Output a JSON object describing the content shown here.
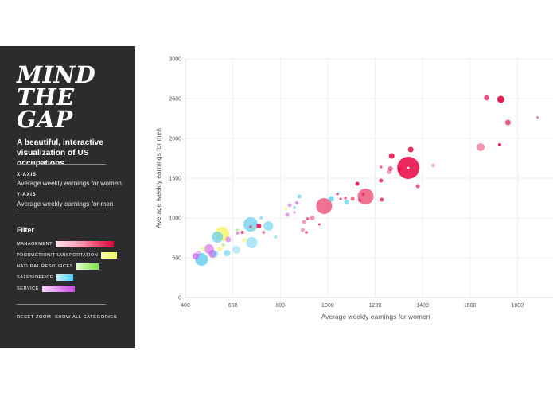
{
  "sidebar": {
    "logo_lines": [
      "MIND",
      "THE",
      "GAP"
    ],
    "tagline": "A beautiful, interactive visualization of US occupations.",
    "x_axis_title": "X-AXIS",
    "x_axis_value": "Average weekly earnings for women",
    "y_axis_title": "Y-AXIS",
    "y_axis_value": "Average weekly earnings for men",
    "filter_title": "Filter",
    "filters": [
      {
        "label": "MANAGEMENT",
        "colors": [
          "#fde4ea",
          "#fbc9d4",
          "#f9a9bb",
          "#f5859f",
          "#f06383",
          "#ea4169",
          "#e2204f",
          "#d8063b"
        ]
      },
      {
        "label": "PRODUCTION/TRANSPORTATION",
        "colors": [
          "#fafc9e",
          "#f6f76c"
        ]
      },
      {
        "label": "NATURAL RESOURCES",
        "colors": [
          "#e3fbd6",
          "#c3f5a6",
          "#9cec71",
          "#7de34a"
        ]
      },
      {
        "label": "SALES/OFFICE",
        "colors": [
          "#c5f1fc",
          "#8ee3f8",
          "#5bd2f2"
        ]
      },
      {
        "label": "SERVICE",
        "colors": [
          "#f6d6fb",
          "#edb4f6",
          "#e08ff0",
          "#d46de9",
          "#c64ce2"
        ]
      }
    ],
    "reset_zoom": "RESET ZOOM",
    "show_all": "SHOW ALL CATEGORIES"
  },
  "colors": {
    "sidebar_bg": "#2c2c2e",
    "management": "#e8124a",
    "production": "#f5f56a",
    "natural": "#8ee65e",
    "sales": "#5ccdf0",
    "service": "#cf5de8"
  },
  "chart_data": {
    "type": "scatter",
    "title": "",
    "xlabel": "Average weekly earnings for women",
    "ylabel": "Average weekly earnings for men",
    "xlim": [
      400,
      1950
    ],
    "ylim": [
      0,
      3000
    ],
    "xticks": [
      400,
      600,
      800,
      1000,
      1200,
      1400,
      1600,
      1800
    ],
    "yticks": [
      0,
      500,
      1000,
      1500,
      2000,
      2500,
      3000
    ],
    "grid": true,
    "points": [
      {
        "x": 1340,
        "y": 1630,
        "r": 14,
        "cat": "management",
        "o": 0.9
      },
      {
        "x": 985,
        "y": 1150,
        "r": 10,
        "cat": "management",
        "o": 0.6
      },
      {
        "x": 1160,
        "y": 1270,
        "r": 10,
        "cat": "management",
        "o": 0.6
      },
      {
        "x": 1350,
        "y": 1860,
        "r": 3.5,
        "cat": "management",
        "o": 0.9
      },
      {
        "x": 1270,
        "y": 1780,
        "r": 3.5,
        "cat": "management",
        "o": 0.9
      },
      {
        "x": 1670,
        "y": 2510,
        "r": 3.2,
        "cat": "management",
        "o": 0.75
      },
      {
        "x": 1730,
        "y": 2490,
        "r": 4.5,
        "cat": "management",
        "o": 0.95
      },
      {
        "x": 1760,
        "y": 2200,
        "r": 3.5,
        "cat": "management",
        "o": 0.7
      },
      {
        "x": 1645,
        "y": 1890,
        "r": 5,
        "cat": "management",
        "o": 0.45
      },
      {
        "x": 1725,
        "y": 1920,
        "r": 2,
        "cat": "management",
        "o": 0.95
      },
      {
        "x": 1885,
        "y": 2265,
        "r": 1.2,
        "cat": "management",
        "o": 0.8
      },
      {
        "x": 1225,
        "y": 1470,
        "r": 2.5,
        "cat": "management",
        "o": 0.8
      },
      {
        "x": 1260,
        "y": 1580,
        "r": 3,
        "cat": "management",
        "o": 0.4
      },
      {
        "x": 1265,
        "y": 1620,
        "r": 3,
        "cat": "management",
        "o": 0.6
      },
      {
        "x": 1305,
        "y": 1610,
        "r": 2.5,
        "cat": "management",
        "o": 0.9
      },
      {
        "x": 1225,
        "y": 1640,
        "r": 1.8,
        "cat": "management",
        "o": 0.6
      },
      {
        "x": 1445,
        "y": 1660,
        "r": 2.5,
        "cat": "management",
        "o": 0.3
      },
      {
        "x": 1228,
        "y": 1230,
        "r": 2.5,
        "cat": "management",
        "o": 0.8
      },
      {
        "x": 1135,
        "y": 1220,
        "r": 2,
        "cat": "management",
        "o": 0.6
      },
      {
        "x": 1150,
        "y": 1300,
        "r": 2,
        "cat": "management",
        "o": 0.6
      },
      {
        "x": 1105,
        "y": 1240,
        "r": 2.5,
        "cat": "management",
        "o": 0.6
      },
      {
        "x": 1075,
        "y": 1250,
        "r": 1.8,
        "cat": "management",
        "o": 0.6
      },
      {
        "x": 1040,
        "y": 1300,
        "r": 1.5,
        "cat": "management",
        "o": 0.8
      },
      {
        "x": 1055,
        "y": 1240,
        "r": 1.5,
        "cat": "management",
        "o": 0.8
      },
      {
        "x": 1125,
        "y": 1430,
        "r": 2.5,
        "cat": "management",
        "o": 0.9
      },
      {
        "x": 1380,
        "y": 1400,
        "r": 2.5,
        "cat": "management",
        "o": 0.7
      },
      {
        "x": 935,
        "y": 1000,
        "r": 3,
        "cat": "management",
        "o": 0.45
      },
      {
        "x": 915,
        "y": 990,
        "r": 2,
        "cat": "management",
        "o": 0.6
      },
      {
        "x": 895,
        "y": 850,
        "r": 2.5,
        "cat": "management",
        "o": 0.4
      },
      {
        "x": 900,
        "y": 950,
        "r": 2.5,
        "cat": "management",
        "o": 0.4
      },
      {
        "x": 965,
        "y": 920,
        "r": 1.5,
        "cat": "management",
        "o": 0.8
      },
      {
        "x": 910,
        "y": 820,
        "r": 1.8,
        "cat": "management",
        "o": 0.7
      },
      {
        "x": 640,
        "y": 820,
        "r": 2,
        "cat": "management",
        "o": 0.7
      },
      {
        "x": 710,
        "y": 900,
        "r": 3,
        "cat": "management",
        "o": 0.9
      },
      {
        "x": 675,
        "y": 890,
        "r": 2,
        "cat": "management",
        "o": 0.5
      },
      {
        "x": 730,
        "y": 820,
        "r": 2,
        "cat": "management",
        "o": 0.5
      },
      {
        "x": 675,
        "y": 920,
        "r": 9,
        "cat": "sales",
        "o": 0.7
      },
      {
        "x": 535,
        "y": 760,
        "r": 7,
        "cat": "sales",
        "o": 0.7
      },
      {
        "x": 468,
        "y": 480,
        "r": 8,
        "cat": "sales",
        "o": 0.8
      },
      {
        "x": 680,
        "y": 690,
        "r": 7,
        "cat": "sales",
        "o": 0.5
      },
      {
        "x": 750,
        "y": 900,
        "r": 6,
        "cat": "sales",
        "o": 0.6
      },
      {
        "x": 1015,
        "y": 1240,
        "r": 3.5,
        "cat": "sales",
        "o": 0.8
      },
      {
        "x": 1080,
        "y": 1200,
        "r": 3,
        "cat": "sales",
        "o": 0.7
      },
      {
        "x": 1045,
        "y": 1310,
        "r": 2,
        "cat": "sales",
        "o": 0.5
      },
      {
        "x": 880,
        "y": 1270,
        "r": 2.5,
        "cat": "sales",
        "o": 0.7
      },
      {
        "x": 860,
        "y": 1130,
        "r": 2,
        "cat": "sales",
        "o": 0.6
      },
      {
        "x": 575,
        "y": 560,
        "r": 4,
        "cat": "sales",
        "o": 0.6
      },
      {
        "x": 615,
        "y": 600,
        "r": 5,
        "cat": "sales",
        "o": 0.4
      },
      {
        "x": 525,
        "y": 550,
        "r": 4,
        "cat": "sales",
        "o": 0.5
      },
      {
        "x": 720,
        "y": 1000,
        "r": 2,
        "cat": "sales",
        "o": 0.6
      },
      {
        "x": 780,
        "y": 760,
        "r": 2,
        "cat": "sales",
        "o": 0.5
      },
      {
        "x": 555,
        "y": 800,
        "r": 9,
        "cat": "production",
        "o": 0.8
      },
      {
        "x": 650,
        "y": 720,
        "r": 3,
        "cat": "production",
        "o": 0.6
      },
      {
        "x": 545,
        "y": 610,
        "r": 3,
        "cat": "production",
        "o": 0.7
      },
      {
        "x": 475,
        "y": 610,
        "r": 3,
        "cat": "production",
        "o": 0.5
      },
      {
        "x": 825,
        "y": 1120,
        "r": 2,
        "cat": "production",
        "o": 0.6
      },
      {
        "x": 500,
        "y": 610,
        "r": 6,
        "cat": "service",
        "o": 0.6
      },
      {
        "x": 443,
        "y": 520,
        "r": 4,
        "cat": "service",
        "o": 0.7
      },
      {
        "x": 515,
        "y": 550,
        "r": 5,
        "cat": "service",
        "o": 0.75
      },
      {
        "x": 580,
        "y": 730,
        "r": 3.5,
        "cat": "service",
        "o": 0.6
      },
      {
        "x": 620,
        "y": 810,
        "r": 2,
        "cat": "service",
        "o": 0.6
      },
      {
        "x": 830,
        "y": 1040,
        "r": 2.5,
        "cat": "service",
        "o": 0.6
      },
      {
        "x": 860,
        "y": 1070,
        "r": 1.8,
        "cat": "service",
        "o": 0.5
      },
      {
        "x": 840,
        "y": 1160,
        "r": 2.5,
        "cat": "service",
        "o": 0.6
      },
      {
        "x": 870,
        "y": 1190,
        "r": 2,
        "cat": "service",
        "o": 0.7
      },
      {
        "x": 455,
        "y": 560,
        "r": 3,
        "cat": "service",
        "o": 0.4
      },
      {
        "x": 560,
        "y": 660,
        "r": 2,
        "cat": "natural",
        "o": 0.6
      },
      {
        "x": 620,
        "y": 850,
        "r": 1.8,
        "cat": "natural",
        "o": 0.6
      },
      {
        "x": 690,
        "y": 860,
        "r": 1.5,
        "cat": "natural",
        "o": 0.7
      }
    ]
  }
}
